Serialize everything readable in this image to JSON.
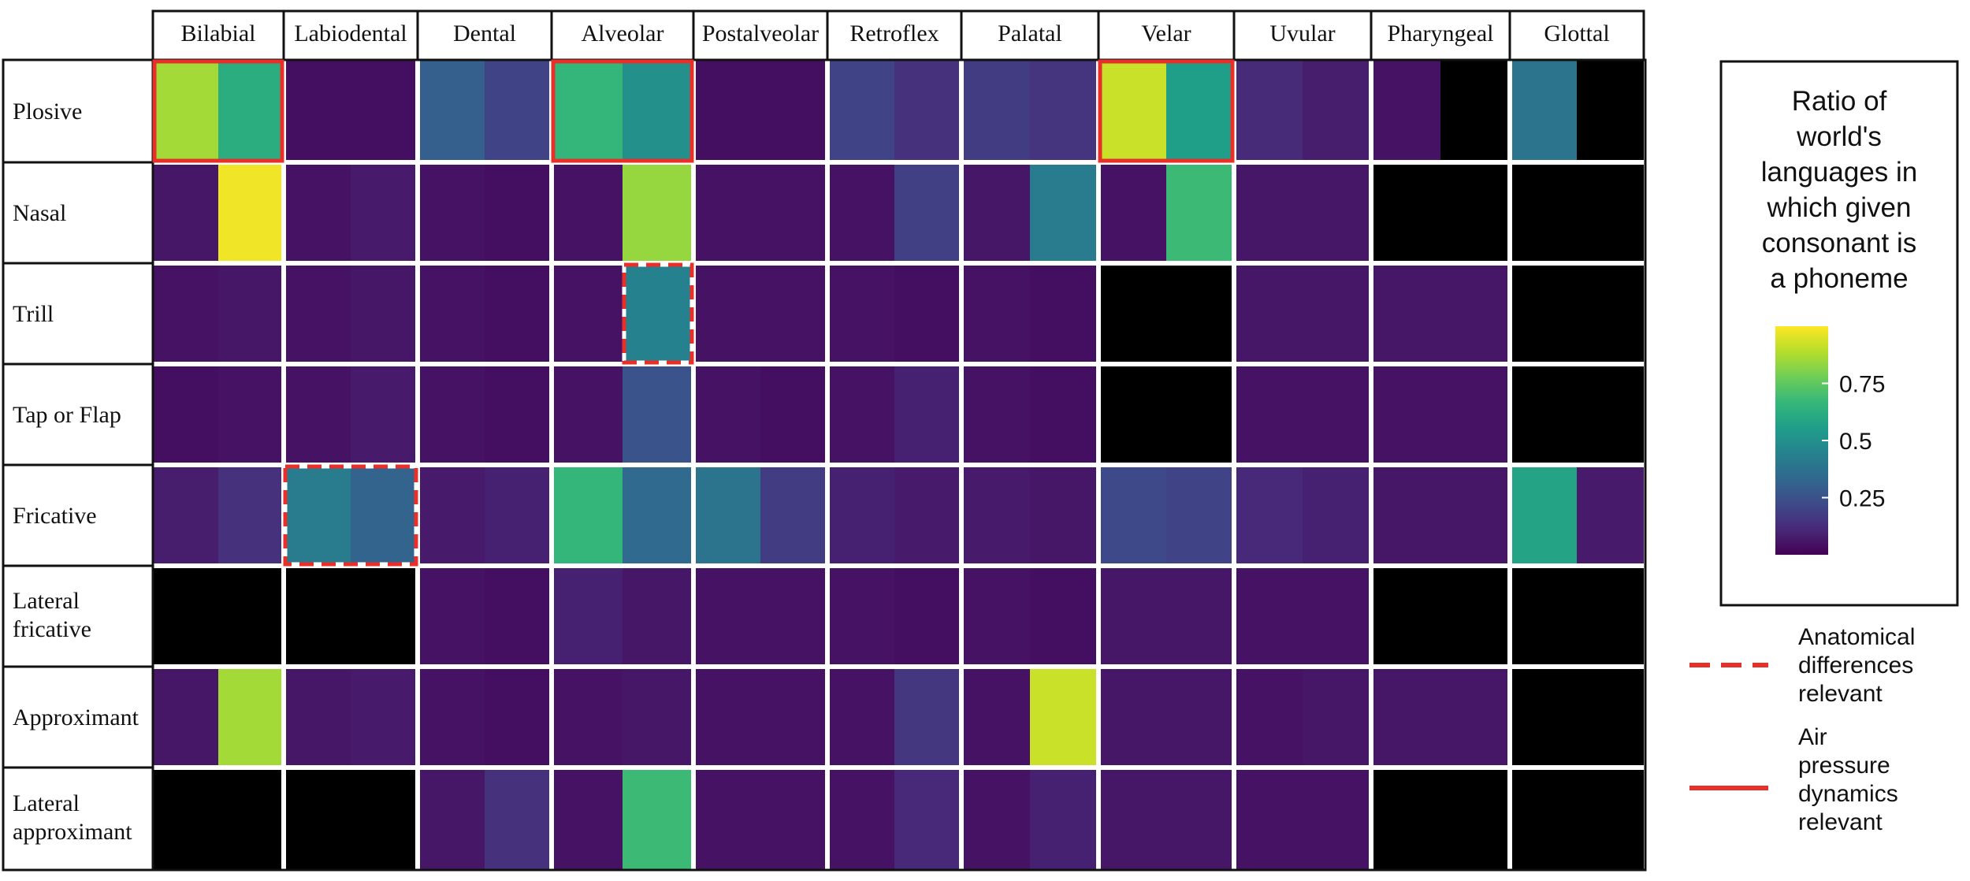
{
  "chart_data": {
    "type": "heatmap",
    "columns": [
      "Bilabial",
      "Labiodental",
      "Dental",
      "Alveolar",
      "Postalveolar",
      "Retroflex",
      "Palatal",
      "Velar",
      "Uvular",
      "Pharyngeal",
      "Glottal"
    ],
    "rows": [
      "Plosive",
      "Nasal",
      "Trill",
      "Tap or Flap",
      "Fricative",
      "Lateral fricative",
      "Approximant",
      "Lateral approximant"
    ],
    "cells_per_column": 2,
    "values": [
      [
        0.86,
        0.62,
        0.04,
        0.04,
        0.3,
        0.2,
        0.66,
        0.5,
        0.04,
        0.04,
        0.2,
        0.14,
        0.18,
        0.15,
        0.92,
        0.56,
        0.12,
        0.08,
        0.05,
        null,
        0.38,
        null
      ],
      [
        0.06,
        0.98,
        0.05,
        0.07,
        0.05,
        0.04,
        0.05,
        0.84,
        0.05,
        0.05,
        0.05,
        0.19,
        0.06,
        0.42,
        0.05,
        0.68,
        0.06,
        0.06,
        null,
        null,
        null,
        null
      ],
      [
        0.05,
        0.06,
        0.05,
        0.06,
        0.05,
        0.04,
        0.05,
        0.44,
        0.05,
        0.05,
        0.05,
        0.04,
        0.05,
        0.04,
        null,
        null,
        0.06,
        0.06,
        0.06,
        0.06,
        null,
        null
      ],
      [
        0.04,
        0.05,
        0.05,
        0.07,
        0.05,
        0.04,
        0.05,
        0.26,
        0.05,
        0.04,
        0.05,
        0.09,
        0.05,
        0.04,
        null,
        null,
        0.05,
        0.05,
        0.05,
        0.05,
        null,
        null
      ],
      [
        0.08,
        0.14,
        0.42,
        0.32,
        0.07,
        0.09,
        0.66,
        0.34,
        0.38,
        0.18,
        0.09,
        0.07,
        0.07,
        0.06,
        0.22,
        0.2,
        0.11,
        0.09,
        0.06,
        0.06,
        0.58,
        0.07
      ],
      [
        null,
        null,
        null,
        null,
        0.05,
        0.04,
        0.09,
        0.06,
        0.05,
        0.05,
        0.05,
        0.04,
        0.05,
        0.04,
        0.06,
        0.06,
        0.05,
        0.05,
        null,
        null,
        null,
        null
      ],
      [
        0.06,
        0.86,
        0.06,
        0.07,
        0.05,
        0.04,
        0.05,
        0.06,
        0.05,
        0.05,
        0.05,
        0.16,
        0.05,
        0.92,
        0.06,
        0.06,
        0.05,
        0.06,
        0.06,
        0.06,
        null,
        null
      ],
      [
        null,
        null,
        null,
        null,
        0.06,
        0.14,
        0.05,
        0.68,
        0.05,
        0.05,
        0.05,
        0.11,
        0.05,
        0.09,
        0.06,
        0.06,
        0.05,
        0.05,
        null,
        null,
        null,
        null
      ]
    ],
    "color_scale": {
      "title_lines": [
        "Ratio of",
        "world's",
        "languages in",
        "which given",
        "consonant is",
        "a phoneme"
      ],
      "ticks": [
        0.25,
        0.5,
        0.75
      ],
      "tick_labels": [
        "0.25",
        "0.5",
        "0.75"
      ],
      "colors": [
        "#440154",
        "#482878",
        "#3e4a89",
        "#31688e",
        "#26828e",
        "#1f9e89",
        "#35b779",
        "#6ece58",
        "#b5de2b",
        "#fde725"
      ],
      "missing_color": "#000000"
    },
    "highlights": [
      {
        "kind": "dashed",
        "row_start": 2,
        "row_end": 2,
        "col_start": 7,
        "col_end": 7
      },
      {
        "kind": "dashed",
        "row_start": 4,
        "row_end": 4,
        "col_start": 2,
        "col_end": 3
      },
      {
        "kind": "solid",
        "row_start": 0,
        "row_end": 0,
        "col_start": 0,
        "col_end": 1
      },
      {
        "kind": "solid",
        "row_start": 0,
        "row_end": 0,
        "col_start": 6,
        "col_end": 7
      },
      {
        "kind": "solid",
        "row_start": 0,
        "row_end": 0,
        "col_start": 14,
        "col_end": 15
      }
    ],
    "highlight_color": "#e8302a",
    "legend": [
      {
        "kind": "dashed",
        "lines": [
          "Anatomical",
          "differences",
          "relevant"
        ]
      },
      {
        "kind": "solid",
        "lines": [
          "Air",
          "pressure",
          "dynamics",
          "relevant"
        ]
      }
    ]
  }
}
